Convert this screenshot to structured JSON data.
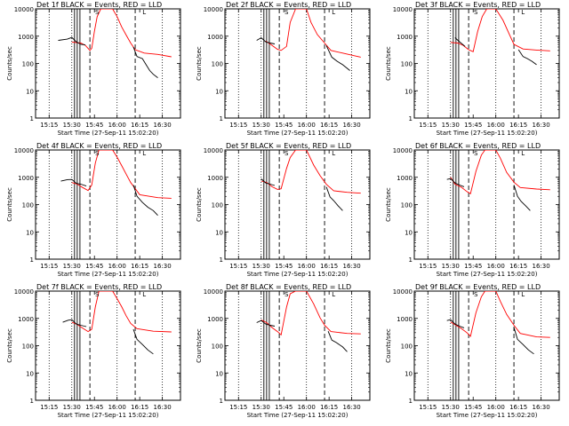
{
  "chart_data": {
    "type": "line",
    "y_scale": "log",
    "ylim": [
      1,
      10000
    ],
    "y_ticks": [
      "1",
      "10",
      "100",
      "1000",
      "10000"
    ],
    "ylabel": "Counts/sec",
    "x_ticks": [
      "15:15",
      "15:30",
      "15:45",
      "16:00",
      "16:15",
      "16:30"
    ],
    "xlabel": "Start Time (27-Sep-11 15:02:20)",
    "series_colors": {
      "Events": "#000000",
      "LLD": "#ff0000"
    },
    "markers": [
      "S",
      "L"
    ],
    "panels": [
      {
        "title": "Det 1f BLACK = Events, RED = LLD",
        "red": [
          [
            15.5,
            610
          ],
          [
            15.6,
            560
          ],
          [
            15.65,
            460
          ],
          [
            15.7,
            300
          ],
          [
            15.72,
            360
          ],
          [
            15.75,
            1500
          ],
          [
            15.78,
            5200
          ],
          [
            15.82,
            10000
          ],
          [
            15.95,
            10000
          ],
          [
            16.0,
            5200
          ],
          [
            16.05,
            2200
          ],
          [
            16.1,
            1100
          ],
          [
            16.15,
            560
          ],
          [
            16.2,
            320
          ],
          [
            16.3,
            240
          ],
          [
            16.45,
            215
          ],
          [
            16.6,
            175
          ]
        ],
        "black": [
          [
            15.35,
            700
          ],
          [
            15.45,
            780
          ],
          [
            15.5,
            900
          ],
          [
            15.55,
            620
          ],
          [
            15.6,
            500
          ],
          [
            15.65,
            480
          ]
        ],
        "black2": [
          [
            16.18,
            400
          ],
          [
            16.22,
            180
          ],
          [
            16.28,
            150
          ],
          [
            16.32,
            90
          ],
          [
            16.36,
            55
          ],
          [
            16.4,
            40
          ],
          [
            16.45,
            30
          ]
        ]
      },
      {
        "title": "Det 2f BLACK = Events, RED = LLD",
        "red": [
          [
            15.55,
            660
          ],
          [
            15.62,
            460
          ],
          [
            15.68,
            330
          ],
          [
            15.72,
            300
          ],
          [
            15.78,
            420
          ],
          [
            15.82,
            3200
          ],
          [
            15.88,
            10000
          ],
          [
            16.0,
            10000
          ],
          [
            16.05,
            3200
          ],
          [
            16.12,
            1150
          ],
          [
            16.2,
            560
          ],
          [
            16.27,
            300
          ],
          [
            16.4,
            240
          ],
          [
            16.6,
            170
          ]
        ],
        "black": [
          [
            15.45,
            700
          ],
          [
            15.5,
            880
          ],
          [
            15.55,
            620
          ],
          [
            15.6,
            560
          ],
          [
            15.65,
            520
          ]
        ],
        "black2": [
          [
            16.22,
            450
          ],
          [
            16.28,
            170
          ],
          [
            16.34,
            120
          ],
          [
            16.4,
            90
          ],
          [
            16.48,
            55
          ]
        ]
      },
      {
        "title": "Det 3f BLACK = Events, RED = LLD",
        "red": [
          [
            15.5,
            590
          ],
          [
            15.58,
            560
          ],
          [
            15.64,
            460
          ],
          [
            15.7,
            320
          ],
          [
            15.75,
            270
          ],
          [
            15.8,
            1500
          ],
          [
            15.85,
            5200
          ],
          [
            15.9,
            10000
          ],
          [
            16.0,
            10000
          ],
          [
            16.08,
            3800
          ],
          [
            16.15,
            1150
          ],
          [
            16.2,
            500
          ],
          [
            16.3,
            340
          ],
          [
            16.45,
            310
          ],
          [
            16.6,
            290
          ]
        ],
        "black": [
          [
            15.55,
            880
          ],
          [
            15.6,
            620
          ],
          [
            15.66,
            420
          ]
        ],
        "black2": [
          [
            16.25,
            320
          ],
          [
            16.3,
            180
          ],
          [
            16.35,
            150
          ],
          [
            16.4,
            120
          ],
          [
            16.45,
            90
          ]
        ]
      },
      {
        "title": "Det 4f BLACK = Events, RED = LLD",
        "red": [
          [
            15.5,
            640
          ],
          [
            15.56,
            560
          ],
          [
            15.62,
            420
          ],
          [
            15.68,
            330
          ],
          [
            15.72,
            520
          ],
          [
            15.76,
            3300
          ],
          [
            15.8,
            10000
          ],
          [
            15.95,
            10000
          ],
          [
            16.0,
            5500
          ],
          [
            16.05,
            2700
          ],
          [
            16.1,
            1300
          ],
          [
            16.15,
            640
          ],
          [
            16.25,
            230
          ],
          [
            16.45,
            180
          ],
          [
            16.6,
            170
          ]
        ],
        "black": [
          [
            15.38,
            720
          ],
          [
            15.45,
            820
          ],
          [
            15.5,
            830
          ],
          [
            15.55,
            600
          ],
          [
            15.6,
            560
          ],
          [
            15.66,
            480
          ]
        ],
        "black2": [
          [
            16.18,
            520
          ],
          [
            16.22,
            200
          ],
          [
            16.28,
            120
          ],
          [
            16.34,
            80
          ],
          [
            16.4,
            60
          ],
          [
            16.45,
            40
          ]
        ]
      },
      {
        "title": "Det 5f BLACK = Events, RED = LLD",
        "red": [
          [
            15.5,
            730
          ],
          [
            15.56,
            650
          ],
          [
            15.62,
            450
          ],
          [
            15.68,
            360
          ],
          [
            15.72,
            380
          ],
          [
            15.78,
            2100
          ],
          [
            15.82,
            5300
          ],
          [
            15.88,
            10000
          ],
          [
            16.0,
            10000
          ],
          [
            16.08,
            2800
          ],
          [
            16.15,
            1150
          ],
          [
            16.22,
            550
          ],
          [
            16.3,
            320
          ],
          [
            16.45,
            280
          ],
          [
            16.6,
            260
          ]
        ],
        "black": [
          [
            15.5,
            880
          ],
          [
            15.55,
            620
          ],
          [
            15.6,
            560
          ],
          [
            15.65,
            500
          ]
        ],
        "black2": [
          [
            16.22,
            440
          ],
          [
            16.26,
            190
          ],
          [
            16.3,
            140
          ],
          [
            16.35,
            90
          ],
          [
            16.4,
            60
          ]
        ]
      },
      {
        "title": "Det 6f BLACK = Events, RED = LLD",
        "red": [
          [
            15.5,
            1000
          ],
          [
            15.55,
            560
          ],
          [
            15.62,
            430
          ],
          [
            15.68,
            300
          ],
          [
            15.72,
            250
          ],
          [
            15.78,
            1650
          ],
          [
            15.84,
            6500
          ],
          [
            15.88,
            10000
          ],
          [
            16.0,
            10000
          ],
          [
            16.05,
            5000
          ],
          [
            16.12,
            1500
          ],
          [
            16.2,
            660
          ],
          [
            16.27,
            420
          ],
          [
            16.45,
            370
          ],
          [
            16.6,
            350
          ]
        ],
        "black": [
          [
            15.46,
            830
          ],
          [
            15.5,
            900
          ],
          [
            15.55,
            620
          ],
          [
            15.6,
            520
          ],
          [
            15.65,
            450
          ]
        ],
        "black2": [
          [
            16.2,
            520
          ],
          [
            16.24,
            200
          ],
          [
            16.28,
            130
          ],
          [
            16.33,
            90
          ],
          [
            16.38,
            60
          ]
        ]
      },
      {
        "title": "Det 7f BLACK = Events, RED = LLD",
        "red": [
          [
            15.5,
            720
          ],
          [
            15.56,
            600
          ],
          [
            15.62,
            440
          ],
          [
            15.68,
            330
          ],
          [
            15.72,
            400
          ],
          [
            15.76,
            2600
          ],
          [
            15.8,
            10000
          ],
          [
            15.95,
            10000
          ],
          [
            16.0,
            5300
          ],
          [
            16.05,
            2700
          ],
          [
            16.1,
            1250
          ],
          [
            16.15,
            650
          ],
          [
            16.22,
            420
          ],
          [
            16.4,
            340
          ],
          [
            16.6,
            320
          ]
        ],
        "black": [
          [
            15.4,
            720
          ],
          [
            15.46,
            860
          ],
          [
            15.5,
            900
          ],
          [
            15.55,
            620
          ],
          [
            15.6,
            560
          ],
          [
            15.66,
            500
          ]
        ],
        "black2": [
          [
            16.18,
            400
          ],
          [
            16.22,
            170
          ],
          [
            16.28,
            110
          ],
          [
            16.34,
            70
          ],
          [
            16.4,
            50
          ]
        ]
      },
      {
        "title": "Det 8f BLACK = Events, RED = LLD",
        "red": [
          [
            15.5,
            880
          ],
          [
            15.56,
            700
          ],
          [
            15.62,
            460
          ],
          [
            15.68,
            330
          ],
          [
            15.72,
            250
          ],
          [
            15.78,
            2600
          ],
          [
            15.82,
            8000
          ],
          [
            15.88,
            10000
          ],
          [
            16.0,
            10000
          ],
          [
            16.08,
            3400
          ],
          [
            16.15,
            1050
          ],
          [
            16.2,
            560
          ],
          [
            16.27,
            330
          ],
          [
            16.45,
            280
          ],
          [
            16.6,
            270
          ]
        ],
        "black": [
          [
            15.45,
            700
          ],
          [
            15.5,
            830
          ],
          [
            15.55,
            620
          ],
          [
            15.6,
            560
          ],
          [
            15.65,
            520
          ]
        ],
        "black2": [
          [
            16.24,
            340
          ],
          [
            16.28,
            160
          ],
          [
            16.33,
            130
          ],
          [
            16.4,
            90
          ],
          [
            16.45,
            60
          ]
        ]
      },
      {
        "title": "Det 9f BLACK = Events, RED = LLD",
        "red": [
          [
            15.5,
            740
          ],
          [
            15.56,
            560
          ],
          [
            15.62,
            420
          ],
          [
            15.68,
            300
          ],
          [
            15.72,
            220
          ],
          [
            15.78,
            1600
          ],
          [
            15.84,
            6200
          ],
          [
            15.88,
            10000
          ],
          [
            16.0,
            10000
          ],
          [
            16.05,
            4200
          ],
          [
            16.12,
            1400
          ],
          [
            16.2,
            560
          ],
          [
            16.27,
            280
          ],
          [
            16.45,
            210
          ],
          [
            16.6,
            200
          ]
        ],
        "black": [
          [
            15.46,
            830
          ],
          [
            15.5,
            900
          ],
          [
            15.55,
            620
          ],
          [
            15.6,
            520
          ],
          [
            15.65,
            450
          ]
        ],
        "black2": [
          [
            16.2,
            460
          ],
          [
            16.24,
            170
          ],
          [
            16.3,
            110
          ],
          [
            16.36,
            70
          ],
          [
            16.42,
            50
          ]
        ]
      }
    ]
  }
}
